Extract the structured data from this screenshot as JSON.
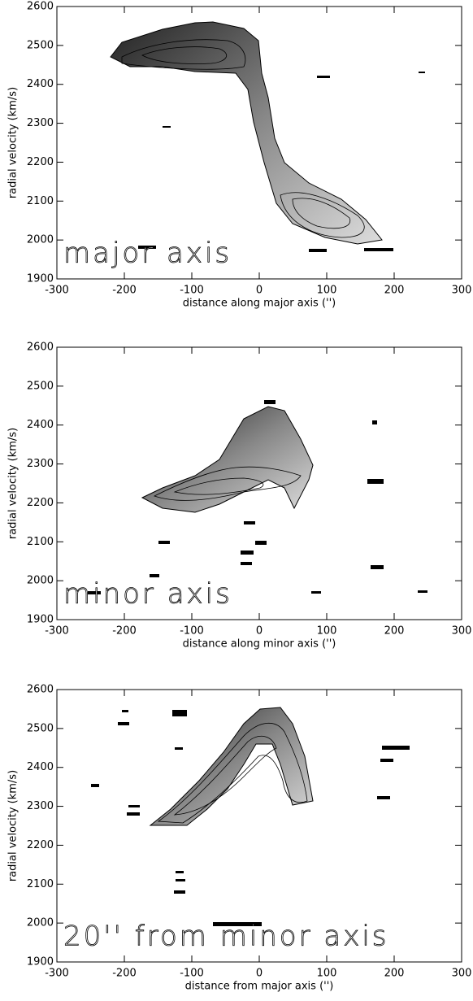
{
  "chart_data": [
    {
      "type": "contour",
      "x_label": "distance along major axis ('')",
      "y_label": "radial velocity (km/s)",
      "annotation": "major axis",
      "xlim": [
        -300,
        300
      ],
      "ylim": [
        1900,
        2600
      ],
      "xticks": [
        -300,
        -200,
        -100,
        0,
        100,
        200,
        300
      ],
      "yticks": [
        1900,
        2000,
        2100,
        2200,
        2300,
        2400,
        2500,
        2600
      ]
    },
    {
      "type": "contour",
      "x_label": "distance along minor axis ('')",
      "y_label": "radial velocity (km/s)",
      "annotation": "minor axis",
      "xlim": [
        -300,
        300
      ],
      "ylim": [
        1900,
        2600
      ],
      "xticks": [
        -300,
        -200,
        -100,
        0,
        100,
        200,
        300
      ],
      "yticks": [
        1900,
        2000,
        2100,
        2200,
        2300,
        2400,
        2500,
        2600
      ]
    },
    {
      "type": "contour",
      "x_label": "distance from major axis ('')",
      "y_label": "radial velocity (km/s)",
      "annotation": "20'' from minor axis",
      "xlim": [
        -300,
        300
      ],
      "ylim": [
        1900,
        2600
      ],
      "xticks": [
        -300,
        -200,
        -100,
        0,
        100,
        200,
        300
      ],
      "yticks": [
        1900,
        2000,
        2100,
        2200,
        2300,
        2400,
        2500,
        2600
      ]
    }
  ]
}
